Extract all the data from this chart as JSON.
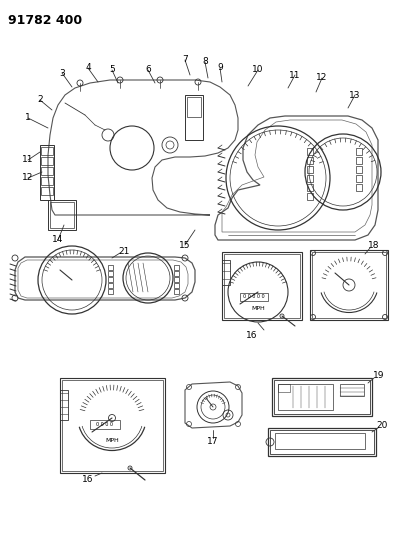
{
  "title": "91782 400",
  "bg_color": "#ffffff",
  "line_color": "#333333",
  "fig_width": 3.99,
  "fig_height": 5.33,
  "dpi": 100
}
